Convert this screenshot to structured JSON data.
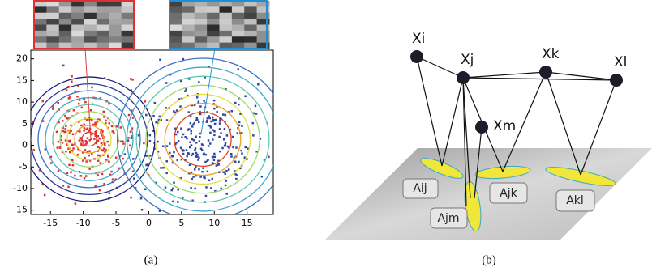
{
  "panel_a": {
    "caption": "(a)",
    "xlim": [
      -18,
      19
    ],
    "ylim": [
      -16,
      22
    ],
    "xticks": [
      -15,
      -10,
      -5,
      0,
      5,
      10,
      15
    ],
    "yticks": [
      20,
      15,
      10,
      5,
      0,
      -5,
      -10,
      -15
    ]
  },
  "panel_b": {
    "caption": "(b)",
    "nodes": [
      {
        "label": "Xi"
      },
      {
        "label": "Xj"
      },
      {
        "label": "Xk"
      },
      {
        "label": "Xl"
      },
      {
        "label": "Xm"
      }
    ],
    "edges": [
      {
        "label": "Aij"
      },
      {
        "label": "Ajk"
      },
      {
        "label": "Ajm"
      },
      {
        "label": "Akl"
      }
    ]
  }
}
